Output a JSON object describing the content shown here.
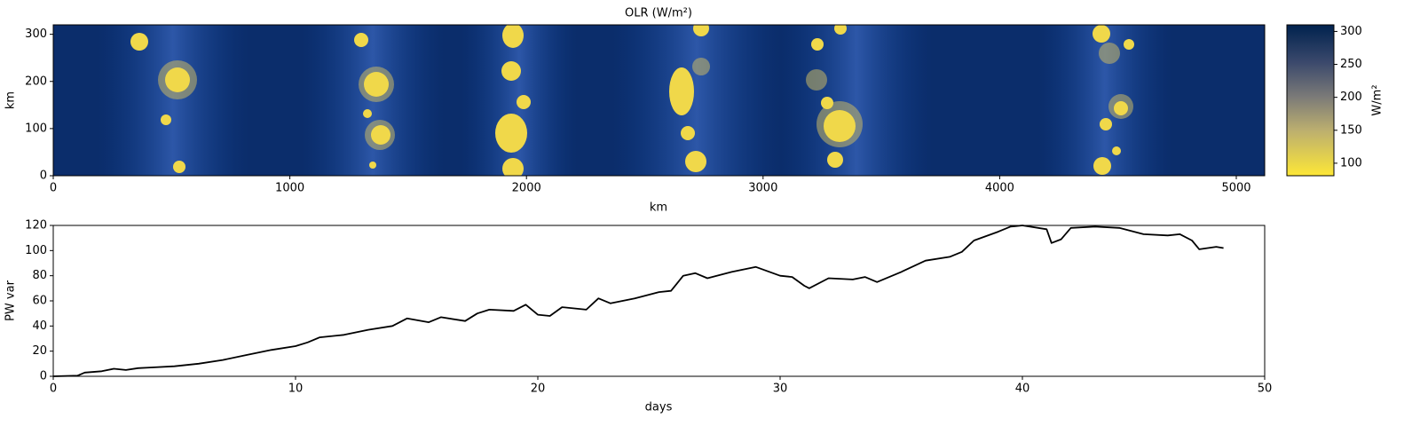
{
  "chart_data": [
    {
      "type": "heatmap",
      "title": "OLR (W/m²)",
      "xlabel": "km",
      "ylabel": "km",
      "xlim": [
        0,
        5120
      ],
      "ylim": [
        0,
        320
      ],
      "xticks": [
        0,
        1000,
        2000,
        3000,
        4000,
        5000
      ],
      "yticks": [
        0,
        100,
        200,
        300
      ],
      "colormap": "cividis_r",
      "colorbar": {
        "label": "W/m²",
        "lim": [
          81,
          310
        ],
        "ticks": [
          100,
          150,
          200,
          250,
          300
        ]
      }
    },
    {
      "type": "line",
      "xlabel": "days",
      "ylabel": "PW var",
      "xlim": [
        0,
        50
      ],
      "ylim": [
        0,
        120
      ],
      "xticks": [
        0,
        10,
        20,
        30,
        40,
        50
      ],
      "yticks": [
        0,
        20,
        40,
        60,
        80,
        100,
        120
      ],
      "x": [
        0,
        1,
        1.3,
        2,
        2.5,
        3,
        3.5,
        4,
        5,
        6,
        7,
        8,
        9,
        10,
        10.5,
        11,
        12,
        13,
        14,
        14.6,
        15.5,
        16,
        17,
        17.5,
        18,
        19,
        19.5,
        20,
        20.5,
        21,
        22,
        22.5,
        23,
        24,
        25,
        25.5,
        26,
        26.5,
        27,
        28,
        29,
        30,
        30.5,
        31,
        31.2,
        32,
        33,
        33.5,
        34,
        35,
        36,
        37,
        37.5,
        38,
        39,
        39.5,
        40,
        41,
        41.2,
        41.6,
        42,
        43,
        44,
        45,
        46,
        46.5,
        47,
        47.3,
        48,
        48.3
      ],
      "color": "#000000",
      "values": [
        0,
        0.5,
        3,
        4,
        6,
        5,
        6.5,
        7,
        8,
        10,
        13,
        17,
        21,
        24,
        27,
        31,
        33,
        37,
        40,
        46,
        43,
        47,
        44,
        50,
        53,
        52,
        57,
        49,
        48,
        55,
        53,
        62,
        58,
        62,
        67,
        68,
        80,
        82,
        78,
        83,
        87,
        80,
        79,
        72,
        70,
        78,
        77,
        79,
        75,
        83,
        92,
        95,
        99,
        108,
        115,
        119,
        120,
        117,
        106,
        109,
        118,
        119,
        118,
        113,
        112,
        113,
        108,
        101,
        103,
        102
      ]
    }
  ]
}
